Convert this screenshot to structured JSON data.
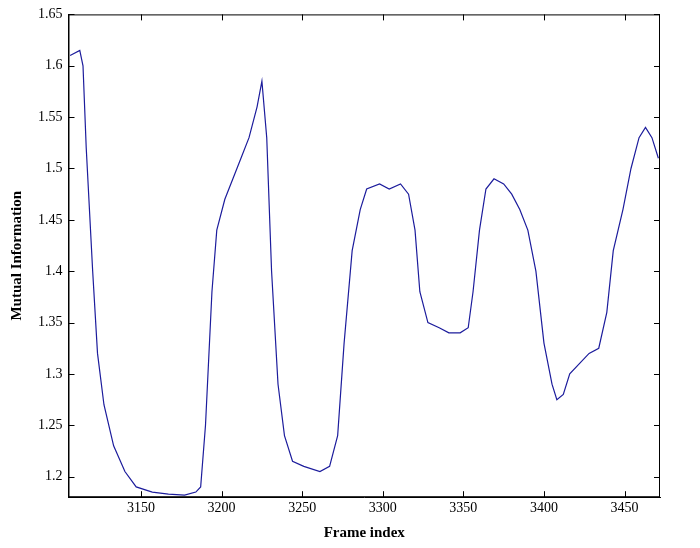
{
  "chart_data": {
    "type": "line",
    "x_label": "Frame index",
    "y_label": "Mutual Information",
    "x": [
      3106,
      3112,
      3114,
      3116,
      3120,
      3123,
      3127,
      3133,
      3140,
      3147,
      3157,
      3167,
      3177,
      3184,
      3187,
      3190,
      3194,
      3197,
      3202,
      3207,
      3212,
      3217,
      3222,
      3225,
      3228,
      3231,
      3235,
      3239,
      3244,
      3251,
      3261,
      3267,
      3272,
      3276,
      3281,
      3286,
      3290,
      3298,
      3304,
      3311,
      3316,
      3320,
      3323,
      3328,
      3335,
      3341,
      3348,
      3353,
      3356,
      3360,
      3364,
      3369,
      3375,
      3380,
      3385,
      3390,
      3395,
      3400,
      3405,
      3408,
      3412,
      3416,
      3422,
      3428,
      3434,
      3439,
      3443,
      3449,
      3454,
      3459,
      3463,
      3467,
      3471
    ],
    "values": [
      1.61,
      1.615,
      1.6,
      1.52,
      1.4,
      1.32,
      1.27,
      1.23,
      1.205,
      1.19,
      1.185,
      1.183,
      1.182,
      1.185,
      1.19,
      1.25,
      1.38,
      1.44,
      1.47,
      1.49,
      1.51,
      1.53,
      1.56,
      1.585,
      1.53,
      1.4,
      1.29,
      1.24,
      1.215,
      1.21,
      1.205,
      1.21,
      1.24,
      1.33,
      1.42,
      1.46,
      1.48,
      1.485,
      1.48,
      1.485,
      1.475,
      1.44,
      1.38,
      1.35,
      1.345,
      1.34,
      1.34,
      1.345,
      1.38,
      1.44,
      1.48,
      1.49,
      1.485,
      1.475,
      1.46,
      1.44,
      1.4,
      1.33,
      1.29,
      1.275,
      1.28,
      1.3,
      1.31,
      1.32,
      1.325,
      1.36,
      1.42,
      1.46,
      1.5,
      1.53,
      1.54,
      1.53,
      1.51
    ],
    "color": "#1c1c9c",
    "xlim": [
      3105,
      3472
    ],
    "xticks": [
      3150,
      3200,
      3250,
      3300,
      3350,
      3400,
      3450
    ],
    "ylim": [
      1.18,
      1.65
    ],
    "yticks": [
      1.2,
      1.25,
      1.3,
      1.35,
      1.4,
      1.45,
      1.5,
      1.55,
      1.6,
      1.65
    ],
    "grid": false
  }
}
